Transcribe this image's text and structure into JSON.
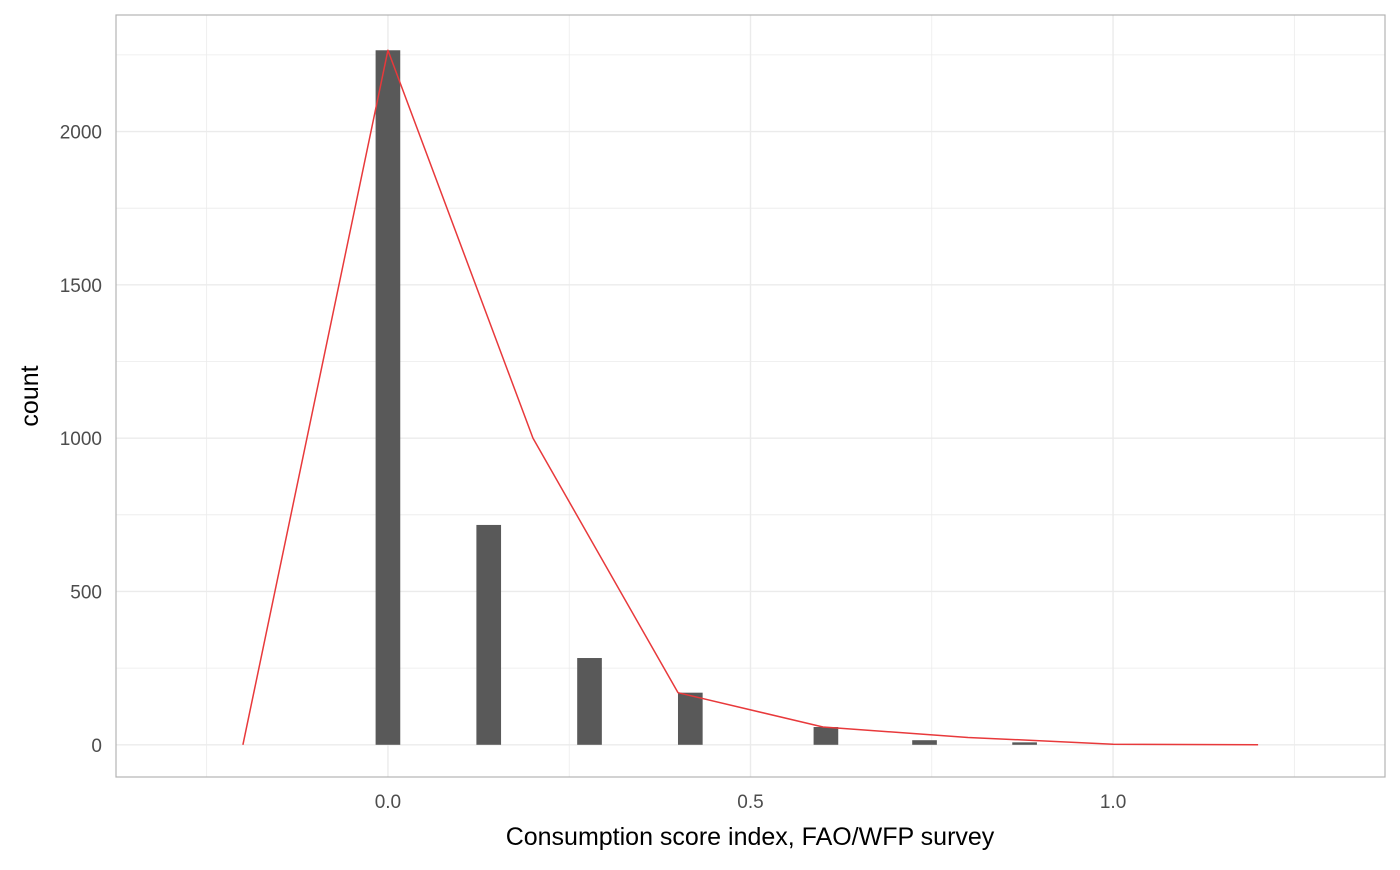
{
  "chart_data": {
    "type": "bar",
    "title": "",
    "xlabel": "Consumption score index, FAO/WFP survey",
    "ylabel": "count",
    "xlim": [
      -0.375,
      1.375
    ],
    "ylim": [
      -105,
      2380
    ],
    "x_ticks": [
      {
        "value": 0.0,
        "label": "0.0"
      },
      {
        "value": 0.5,
        "label": "0.5"
      },
      {
        "value": 1.0,
        "label": "1.0"
      }
    ],
    "x_minor_gridlines": [
      -0.25,
      0.25,
      0.75,
      1.25
    ],
    "y_ticks": [
      {
        "value": 0,
        "label": "0"
      },
      {
        "value": 500,
        "label": "500"
      },
      {
        "value": 1000,
        "label": "1000"
      },
      {
        "value": 1500,
        "label": "1500"
      },
      {
        "value": 2000,
        "label": "2000"
      }
    ],
    "y_minor_gridlines": [
      250,
      750,
      1250,
      1750,
      2250
    ],
    "grid": true,
    "bar_width": 0.034,
    "bar_color": "#595959",
    "bars": [
      {
        "x": 0.0,
        "count": 2265
      },
      {
        "x": 0.139,
        "count": 717
      },
      {
        "x": 0.278,
        "count": 283
      },
      {
        "x": 0.417,
        "count": 170
      },
      {
        "x": 0.604,
        "count": 58
      },
      {
        "x": 0.74,
        "count": 15
      },
      {
        "x": 0.878,
        "count": 8
      }
    ],
    "line_color": "#e8393b",
    "frequency_polygon": [
      {
        "x": -0.2,
        "count": 0
      },
      {
        "x": 0.0,
        "count": 2265
      },
      {
        "x": 0.2,
        "count": 1000
      },
      {
        "x": 0.4,
        "count": 170
      },
      {
        "x": 0.6,
        "count": 58
      },
      {
        "x": 0.8,
        "count": 24
      },
      {
        "x": 1.0,
        "count": 2
      },
      {
        "x": 1.2,
        "count": 0
      }
    ]
  },
  "colors": {
    "grid": "#ebebeb",
    "panel_border": "#b3b3b3",
    "background": "#ffffff"
  }
}
